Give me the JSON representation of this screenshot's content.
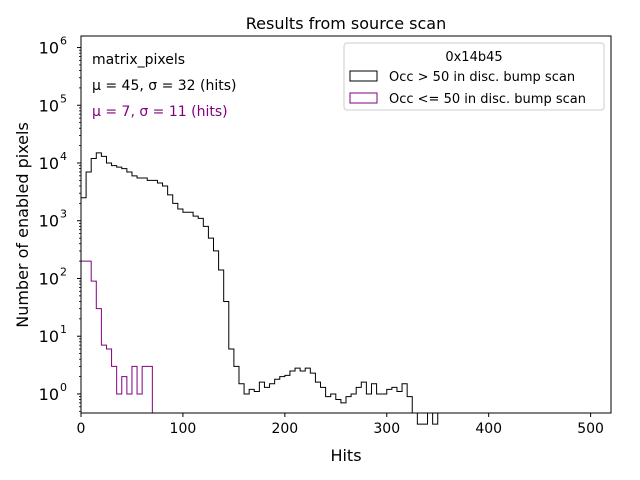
{
  "chart_data": {
    "type": "histogram",
    "title": "Results from source scan",
    "xlabel": "Hits",
    "ylabel": "Number of enabled pixels",
    "xlim": [
      0,
      520
    ],
    "ylim_log10": [
      -0.33,
      6.2
    ],
    "yscale": "log",
    "x_ticks": [
      0,
      100,
      200,
      300,
      400,
      500
    ],
    "x_tick_labels": [
      "0",
      "100",
      "200",
      "300",
      "400",
      "500"
    ],
    "y_ticks": [
      1,
      10,
      100,
      1000,
      10000,
      100000,
      1000000
    ],
    "y_tick_exponents": [
      "0",
      "1",
      "2",
      "3",
      "4",
      "5",
      "6"
    ],
    "y_tick_base": "10",
    "bin_width": 5,
    "annotations": [
      {
        "text": "matrix_pixels",
        "color": "#000000"
      },
      {
        "text": "μ = 45, σ = 32 (hits)",
        "color": "#000000"
      },
      {
        "text": "μ = 7, σ = 11 (hits)",
        "color": "#800080"
      }
    ],
    "legend": {
      "title": "0x14b45",
      "position": "upper right",
      "entries": [
        {
          "label": "Occ > 50 in disc. bump scan",
          "color": "#000000"
        },
        {
          "label": "Occ <= 50 in disc. bump scan",
          "color": "#800080"
        }
      ]
    },
    "series": [
      {
        "name": "Occ > 50 in disc. bump scan",
        "color": "#000000",
        "bin_starts": [
          0,
          5,
          10,
          15,
          20,
          25,
          30,
          35,
          40,
          45,
          50,
          55,
          60,
          65,
          70,
          75,
          80,
          85,
          90,
          95,
          100,
          105,
          110,
          115,
          120,
          125,
          130,
          135,
          140,
          145,
          150,
          155,
          160,
          165,
          170,
          175,
          180,
          185,
          190,
          195,
          200,
          205,
          210,
          215,
          220,
          225,
          230,
          235,
          240,
          245,
          250,
          255,
          260,
          265,
          270,
          275,
          280,
          285,
          290,
          295,
          300,
          305,
          310,
          315,
          320,
          325,
          330,
          335,
          340,
          345,
          350,
          355
        ],
        "counts": [
          2500,
          7000,
          12000,
          15000,
          13000,
          10000,
          9000,
          8500,
          8000,
          7000,
          6000,
          5500,
          5500,
          5000,
          5000,
          4500,
          4000,
          2800,
          2000,
          1600,
          1400,
          1400,
          1200,
          1100,
          800,
          500,
          300,
          140,
          40,
          6,
          3,
          1.5,
          1.0,
          1.2,
          1.1,
          1.6,
          1.3,
          1.5,
          1.8,
          2.0,
          2.1,
          2.5,
          2.8,
          2.5,
          2.8,
          2.3,
          1.6,
          1.3,
          0.9,
          1.0,
          0.8,
          0.7,
          0.9,
          1.0,
          1.3,
          1.6,
          1.0,
          1.5,
          1.0,
          1.0,
          1.2,
          1.3,
          1.1,
          1.5,
          0.9,
          0.0,
          0.3,
          0.3,
          0.0,
          0.3,
          0.0,
          0.0
        ]
      },
      {
        "name": "Occ <= 50 in disc. bump scan",
        "color": "#800080",
        "bin_starts": [
          0,
          5,
          10,
          15,
          20,
          25,
          30,
          35,
          40,
          45,
          50,
          55,
          60,
          65
        ],
        "counts": [
          200,
          200,
          90,
          30,
          7,
          6,
          3,
          1,
          2,
          1,
          3,
          1,
          3,
          3
        ]
      }
    ]
  }
}
